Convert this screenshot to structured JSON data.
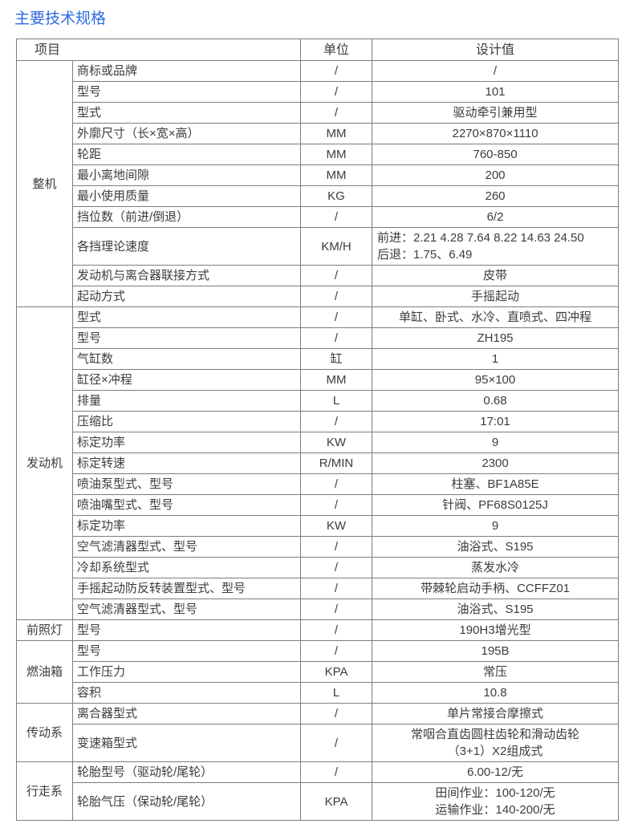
{
  "page_title": "主要技术规格",
  "colors": {
    "title": "#2d6be0",
    "border": "#7d7d7d",
    "text": "#3c3c3c"
  },
  "table": {
    "headers": {
      "item": "项目",
      "unit": "单位",
      "value": "设计值"
    },
    "groups": [
      {
        "key": "whole-machine",
        "name": "整机",
        "rows": [
          {
            "item": "商标或品牌",
            "unit": "/",
            "value": "/"
          },
          {
            "item": "型号",
            "unit": "/",
            "value": "101"
          },
          {
            "item": "型式",
            "unit": "/",
            "value": "驱动牵引兼用型"
          },
          {
            "item": "外廓尺寸（长×宽×高）",
            "unit": "MM",
            "value": "2270×870×1110"
          },
          {
            "item": "轮距",
            "unit": "MM",
            "value": "760-850"
          },
          {
            "item": "最小离地间隙",
            "unit": "MM",
            "value": "200"
          },
          {
            "item": "最小使用质量",
            "unit": "KG",
            "value": "260"
          },
          {
            "item": "挡位数（前进/倒退）",
            "unit": "/",
            "value": "6/2"
          },
          {
            "item": "各挡理论速度",
            "unit": "KM/H",
            "value": [
              "前进：2.21 4.28 7.64 8.22 14.63 24.50",
              "后退：1.75、6.49"
            ],
            "value_align": "left"
          },
          {
            "item": "发动机与离合器联接方式",
            "unit": "/",
            "value": "皮带"
          },
          {
            "item": "起动方式",
            "unit": "/",
            "value": "手摇起动"
          }
        ]
      },
      {
        "key": "engine",
        "name": "发动机",
        "rows": [
          {
            "item": "型式",
            "unit": "/",
            "value": "单缸、卧式、水冷、直喷式、四冲程"
          },
          {
            "item": "型号",
            "unit": "/",
            "value": "ZH195"
          },
          {
            "item": "气缸数",
            "unit": "缸",
            "value": "1"
          },
          {
            "item": "缸径×冲程",
            "unit": "MM",
            "value": "95×100"
          },
          {
            "item": "排量",
            "unit": "L",
            "value": "0.68"
          },
          {
            "item": "压缩比",
            "unit": "/",
            "value": "17:01"
          },
          {
            "item": "标定功率",
            "unit": "KW",
            "value": "9"
          },
          {
            "item": "标定转速",
            "unit": "R/MIN",
            "value": "2300"
          },
          {
            "item": "喷油泵型式、型号",
            "unit": "/",
            "value": "柱塞、BF1A85E"
          },
          {
            "item": "喷油嘴型式、型号",
            "unit": "/",
            "value": "针阀、PF68S0125J"
          },
          {
            "item": "标定功率",
            "unit": "KW",
            "value": "9"
          },
          {
            "item": "空气滤清器型式、型号",
            "unit": "/",
            "value": "油浴式、S195"
          },
          {
            "item": "冷却系统型式",
            "unit": "/",
            "value": "蒸发水冷"
          },
          {
            "item": "手摇起动防反转装置型式、型号",
            "unit": "/",
            "value": "带棘轮启动手柄、CCFFZ01"
          },
          {
            "item": "空气滤清器型式、型号",
            "unit": "/",
            "value": "油浴式、S195"
          }
        ]
      },
      {
        "key": "headlamp",
        "name": "前照灯",
        "rows": [
          {
            "item": "型号",
            "unit": "/",
            "value": "190H3增光型"
          }
        ]
      },
      {
        "key": "fuel-tank",
        "name": "燃油箱",
        "rows": [
          {
            "item": "型号",
            "unit": "/",
            "value": "195B"
          },
          {
            "item": "工作压力",
            "unit": "KPA",
            "value": "常压"
          },
          {
            "item": "容积",
            "unit": "L",
            "value": "10.8"
          }
        ]
      },
      {
        "key": "transmission",
        "name": "传动系",
        "rows": [
          {
            "item": "离合器型式",
            "unit": "/",
            "value": "单片常接合摩擦式"
          },
          {
            "item": "变速箱型式",
            "unit": "/",
            "value": [
              "常咽合直齿圆柱齿轮和滑动齿轮",
              "（3+1）X2组成式"
            ]
          }
        ]
      },
      {
        "key": "running-gear",
        "name": "行走系",
        "rows": [
          {
            "item": "轮胎型号（驱动轮/尾轮）",
            "unit": "/",
            "value": "6.00-12/无"
          },
          {
            "item": "轮胎气压（保动轮/尾轮）",
            "unit": "KPA",
            "value": [
              "田间作业：100-120/无",
              "运输作业：140-200/无"
            ],
            "value_align": "block"
          }
        ]
      }
    ]
  }
}
